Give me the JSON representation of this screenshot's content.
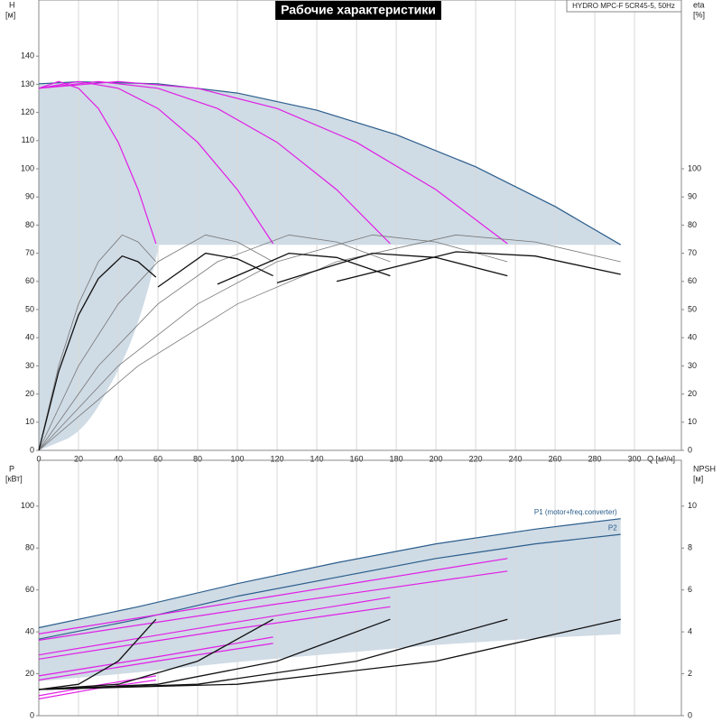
{
  "chart_data": [
    {
      "type": "line",
      "title": "Рабочие характеристики",
      "subtitle": "HYDRO MPC-F 5CR45-5, 50Hz",
      "ylabel": "H",
      "yunit": "[м]",
      "y2label": "eta",
      "y2unit": "[%]",
      "xlabel": "Q [м³/ч]",
      "xlim": [
        0,
        323.6
      ],
      "xticks": [
        0,
        20,
        40,
        60,
        80,
        100,
        120,
        140,
        160,
        180,
        200,
        220,
        240,
        260,
        280,
        300
      ],
      "ylim": [
        0,
        150
      ],
      "yticks": [
        0,
        10,
        20,
        30,
        40,
        50,
        60,
        70,
        80,
        90,
        100,
        110,
        120,
        130,
        140
      ],
      "y2lim": [
        0,
        150
      ],
      "y2ticks": [
        0,
        10,
        20,
        30,
        40,
        50,
        60,
        70,
        80,
        90,
        100
      ],
      "grid": true,
      "area_color": "#cfdbe5",
      "series": [
        {
          "color": "#2b5d8c",
          "x": [
            0,
            20,
            60,
            100,
            140,
            180,
            220,
            260,
            293
          ],
          "values": [
            130.2,
            130.9,
            130.2,
            126.9,
            120.8,
            112.1,
            100.7,
            86.6,
            73
          ]
        },
        {
          "color": "#e11ee6",
          "x": [
            0,
            10,
            20,
            30,
            40,
            50,
            59
          ],
          "values": [
            128.6,
            131,
            128.6,
            121.4,
            109.4,
            92.6,
            73.4
          ]
        },
        {
          "color": "#e11ee6",
          "x": [
            0,
            20,
            40,
            60,
            80,
            100,
            118
          ],
          "values": [
            128.6,
            131,
            128.6,
            121.4,
            109.4,
            92.6,
            73.4
          ]
        },
        {
          "color": "#e11ee6",
          "x": [
            0,
            30,
            60,
            90,
            120,
            150,
            177
          ],
          "values": [
            128.6,
            131,
            128.6,
            121.4,
            109.4,
            92.6,
            73.4
          ]
        },
        {
          "color": "#e11ee6",
          "x": [
            0,
            40,
            80,
            120,
            160,
            200,
            236
          ],
          "values": [
            128.6,
            131,
            128.6,
            121.4,
            109.4,
            92.6,
            73.4
          ]
        },
        {
          "color": "#777777",
          "axis": "y2",
          "x": [
            0,
            10,
            20,
            30,
            42,
            50,
            59
          ],
          "values": [
            0,
            30,
            52,
            67,
            76.5,
            74,
            67
          ]
        },
        {
          "color": "#777777",
          "axis": "y2",
          "x": [
            0,
            20,
            40,
            60,
            84,
            100,
            118
          ],
          "values": [
            0,
            30,
            52,
            67,
            76.5,
            74,
            67
          ]
        },
        {
          "color": "#777777",
          "axis": "y2",
          "x": [
            0,
            30,
            60,
            90,
            126,
            150,
            177
          ],
          "values": [
            0,
            30,
            52,
            67,
            76.5,
            74,
            67
          ]
        },
        {
          "color": "#777777",
          "axis": "y2",
          "x": [
            0,
            40,
            80,
            120,
            168,
            200,
            236
          ],
          "values": [
            0,
            30,
            52,
            67,
            76.5,
            74,
            67
          ]
        },
        {
          "color": "#777777",
          "axis": "y2",
          "x": [
            0,
            50,
            100,
            150,
            210,
            250,
            293
          ],
          "values": [
            0,
            30,
            52,
            67,
            76.5,
            74,
            67
          ]
        },
        {
          "color": "#111111",
          "axis": "y2",
          "x": [
            0,
            10,
            20,
            30,
            42,
            50,
            59
          ],
          "values": [
            0,
            28,
            48,
            61,
            69,
            67,
            61.5
          ]
        },
        {
          "color": "#111111",
          "axis": "y2",
          "x": [
            60,
            84,
            100,
            118
          ],
          "values": [
            58,
            70,
            68,
            62
          ]
        },
        {
          "color": "#111111",
          "axis": "y2",
          "x": [
            90,
            126,
            150,
            177
          ],
          "values": [
            59,
            70,
            68.5,
            62
          ]
        },
        {
          "color": "#111111",
          "axis": "y2",
          "x": [
            120,
            168,
            200,
            236
          ],
          "values": [
            59.5,
            70,
            68.5,
            62
          ]
        },
        {
          "color": "#111111",
          "axis": "y2",
          "x": [
            150,
            210,
            250,
            293
          ],
          "values": [
            60,
            70.5,
            69,
            62.5
          ]
        }
      ]
    },
    {
      "type": "line",
      "ylabel": "P",
      "yunit": "[кВт]",
      "y2label": "NPSH",
      "y2unit": "[м]",
      "xlim": [
        0,
        323.6
      ],
      "ylim": [
        0,
        118
      ],
      "yticks": [
        0,
        20,
        40,
        60,
        80,
        100
      ],
      "y2lim": [
        0,
        11.8
      ],
      "y2ticks": [
        0,
        2,
        4,
        6,
        8,
        10
      ],
      "area_color": "#cfdbe5",
      "series": [
        {
          "name": "P1 (motor+freq.converter)",
          "color": "#2b5d8c",
          "x": [
            0,
            50,
            100,
            150,
            200,
            250,
            293
          ],
          "values": [
            42,
            52,
            63,
            73,
            82,
            89,
            94
          ]
        },
        {
          "name": "P2",
          "color": "#2b5d8c",
          "x": [
            0,
            50,
            100,
            150,
            200,
            250,
            293
          ],
          "values": [
            36.5,
            46,
            57,
            66,
            75,
            82,
            86.5
          ]
        },
        {
          "color": "#e11ee6",
          "x": [
            0,
            29.5,
            59
          ],
          "values": [
            9.5,
            14.5,
            19
          ]
        },
        {
          "color": "#e11ee6",
          "x": [
            0,
            29.5,
            59
          ],
          "values": [
            8,
            13,
            17
          ]
        },
        {
          "color": "#e11ee6",
          "x": [
            0,
            59,
            118
          ],
          "values": [
            19,
            28,
            37.5
          ]
        },
        {
          "color": "#e11ee6",
          "x": [
            0,
            59,
            118
          ],
          "values": [
            17,
            26,
            34.5
          ]
        },
        {
          "color": "#e11ee6",
          "x": [
            0,
            88.5,
            177
          ],
          "values": [
            29,
            43,
            56.5
          ]
        },
        {
          "color": "#e11ee6",
          "x": [
            0,
            88.5,
            177
          ],
          "values": [
            27,
            40,
            52
          ]
        },
        {
          "color": "#e11ee6",
          "x": [
            0,
            118,
            236
          ],
          "values": [
            39,
            57,
            75
          ]
        },
        {
          "color": "#e11ee6",
          "x": [
            0,
            118,
            236
          ],
          "values": [
            36,
            53,
            69
          ]
        },
        {
          "color": "#111111",
          "axis": "y2",
          "x": [
            0,
            20,
            40,
            59
          ],
          "values": [
            1.25,
            1.5,
            2.6,
            4.6
          ]
        },
        {
          "color": "#111111",
          "axis": "y2",
          "x": [
            0,
            40,
            80,
            118
          ],
          "values": [
            1.25,
            1.5,
            2.6,
            4.6
          ]
        },
        {
          "color": "#111111",
          "axis": "y2",
          "x": [
            0,
            60,
            120,
            177
          ],
          "values": [
            1.25,
            1.5,
            2.6,
            4.6
          ]
        },
        {
          "color": "#111111",
          "axis": "y2",
          "x": [
            0,
            80,
            160,
            236
          ],
          "values": [
            1.25,
            1.5,
            2.6,
            4.6
          ]
        },
        {
          "color": "#111111",
          "axis": "y2",
          "x": [
            0,
            100,
            200,
            293
          ],
          "values": [
            1.25,
            1.5,
            2.6,
            4.6
          ]
        }
      ]
    }
  ]
}
